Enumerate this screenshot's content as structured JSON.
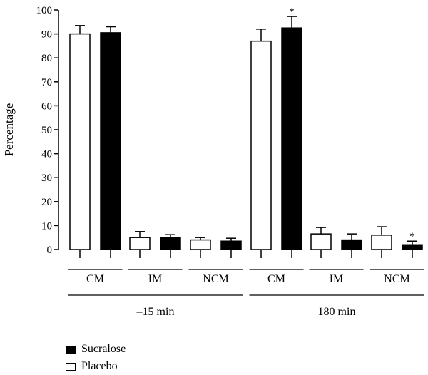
{
  "chart_data": {
    "type": "bar",
    "ylabel": "Percentage",
    "ylim": [
      0,
      100
    ],
    "yticks": [
      0,
      10,
      20,
      30,
      40,
      50,
      60,
      70,
      80,
      90,
      100
    ],
    "categories": [
      "CM",
      "IM",
      "NCM",
      "CM",
      "IM",
      "NCM"
    ],
    "groups": [
      "–15 min",
      "180 min"
    ],
    "series": [
      {
        "name": "Placebo",
        "color": "#ffffff",
        "values": [
          90,
          5,
          4,
          87,
          6.5,
          6
        ],
        "errors": [
          3.5,
          2.5,
          1.0,
          5,
          2.7,
          3.5
        ],
        "significant": [
          false,
          false,
          false,
          false,
          false,
          false
        ]
      },
      {
        "name": "Sucralose",
        "color": "#000000",
        "values": [
          90.5,
          5,
          3.5,
          92.5,
          4,
          2
        ],
        "errors": [
          2.5,
          1.2,
          1.2,
          4.8,
          2.5,
          1.5
        ],
        "significant": [
          false,
          false,
          false,
          true,
          false,
          true
        ]
      }
    ],
    "significance_marker": "*",
    "legend": [
      {
        "name": "Sucralose",
        "color": "#000000"
      },
      {
        "name": "Placebo",
        "color": "#ffffff"
      }
    ],
    "legend_position": "bottom-left",
    "grid": false
  }
}
